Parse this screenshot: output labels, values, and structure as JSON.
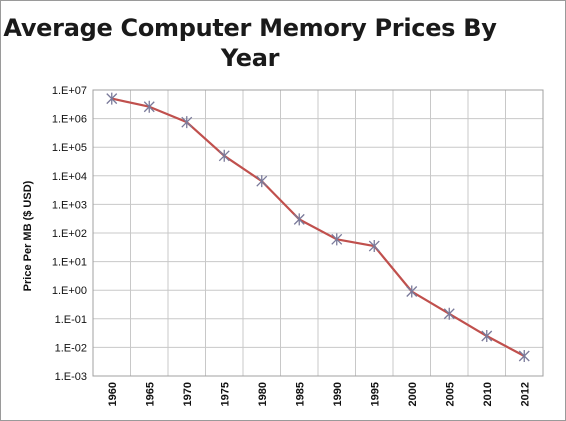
{
  "chart_data": {
    "type": "line",
    "title": "Average Computer Memory Prices By Year",
    "title_lines": [
      "Average Computer Memory Prices By",
      "Year"
    ],
    "xlabel": "",
    "ylabel": "Price Per MB ($ USD)",
    "y_scale": "log",
    "ylim_exponents": [
      -3,
      7
    ],
    "y_tick_labels": [
      "1.E+07",
      "1.E+06",
      "1.E+05",
      "1.E+04",
      "1.E+03",
      "1.E+02",
      "1.E+01",
      "1.E+00",
      "1.E-01",
      "1.E-02",
      "1.E-03"
    ],
    "categories": [
      "1960",
      "1965",
      "1970",
      "1975",
      "1980",
      "1985",
      "1990",
      "1995",
      "2000",
      "2005",
      "2010",
      "2012"
    ],
    "series": [
      {
        "values": [
          5000000,
          2600000,
          750000,
          50000,
          6500,
          300,
          60,
          35,
          0.9,
          0.15,
          0.025,
          0.005
        ],
        "color": "#c0504d",
        "marker": "star"
      }
    ],
    "grid": true,
    "legend": "none",
    "gridline_color": "#c8c8c8"
  }
}
